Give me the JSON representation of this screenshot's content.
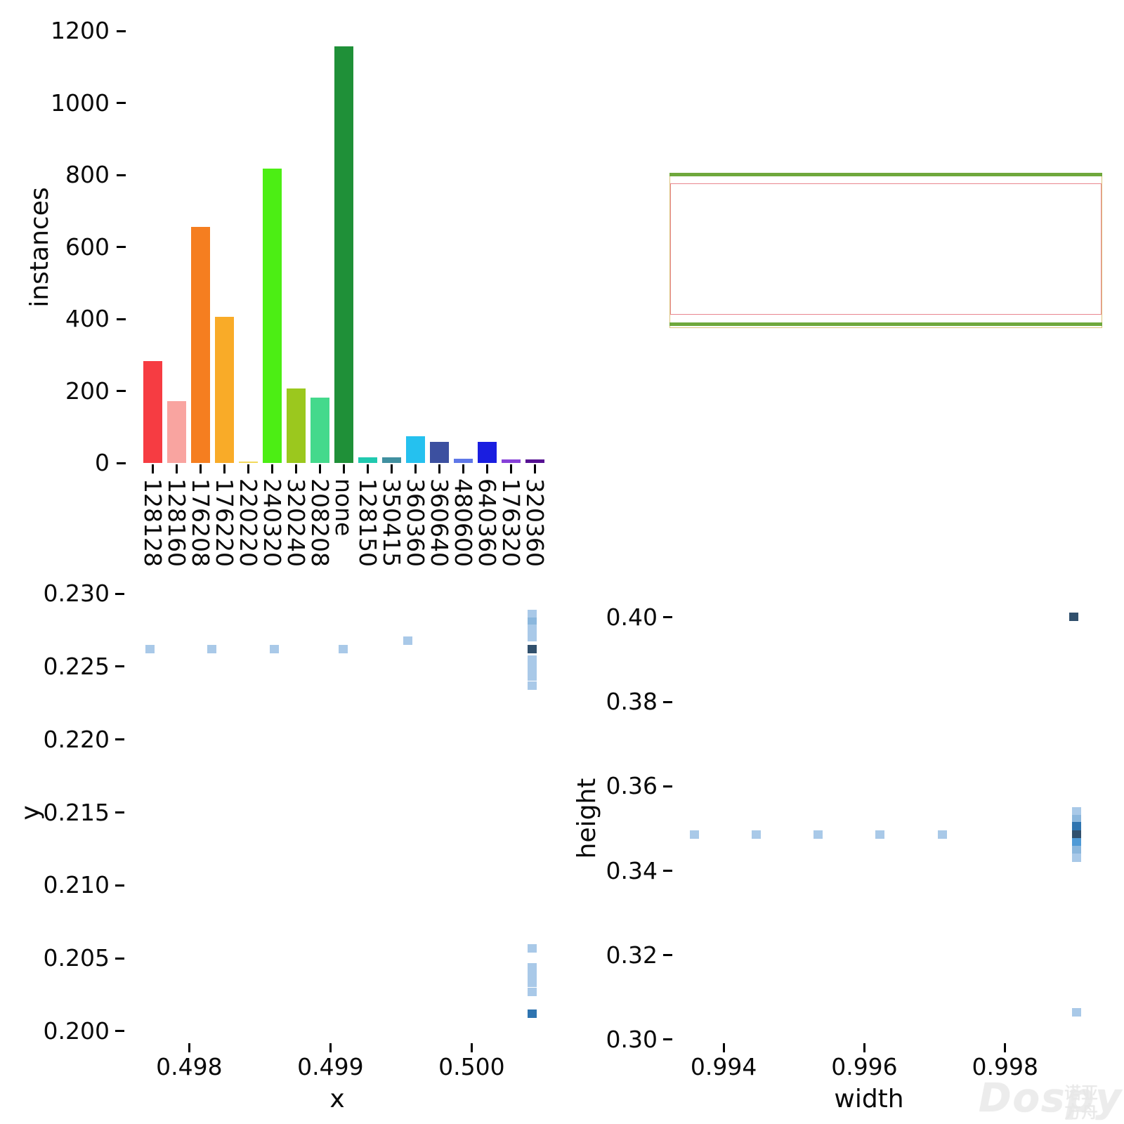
{
  "watermark": {
    "brand": "Dospy",
    "cjk_line1": "诺亚",
    "cjk_line2": "方舟"
  },
  "chart_data": [
    {
      "id": "instances-histogram",
      "type": "bar",
      "title": "",
      "xlabel": "",
      "ylabel": "instances",
      "ylim": [
        0,
        1208
      ],
      "ytick_values": [
        0,
        200,
        400,
        600,
        800,
        1000,
        1200
      ],
      "ytick_labels": [
        "0",
        "200",
        "400",
        "600",
        "800",
        "1000",
        "1200"
      ],
      "categories": [
        "128128",
        "128160",
        "176208",
        "176220",
        "220220",
        "240320",
        "320240",
        "208208",
        "none",
        "128150",
        "350415",
        "360360",
        "360640",
        "480600",
        "640360",
        "176320",
        "320360"
      ],
      "values": [
        283,
        171,
        655,
        406,
        3,
        817,
        207,
        181,
        1158,
        16,
        15,
        75,
        58,
        11,
        58,
        9,
        10
      ],
      "colors": [
        "#f63c42",
        "#f9a4a0",
        "#f57e20",
        "#f9ab28",
        "#f2d95c",
        "#4cee14",
        "#9bc81e",
        "#44d98c",
        "#1f9038",
        "#20c9af",
        "#4090a0",
        "#25c1ef",
        "#3c50a0",
        "#5f78e8",
        "#1a1ee0",
        "#8640d8",
        "#561192"
      ]
    },
    {
      "id": "bbox-overlay",
      "type": "boxes",
      "description": "overlaid bounding-box outlines",
      "rects": [
        {
          "name": "outer-yellow-box",
          "color": "#dcc37c",
          "thickness_px": 1
        },
        {
          "name": "green-box",
          "color": "#6fa83c",
          "thickness_px": 5
        },
        {
          "name": "red-box",
          "color": "#e9868f",
          "thickness_px": 1
        }
      ]
    },
    {
      "id": "xy-hist2d",
      "type": "heatmap",
      "xlabel": "x",
      "ylabel": "y",
      "xlim": [
        0.49758,
        0.50059
      ],
      "ylim": [
        0.19937,
        0.23092
      ],
      "xticks": [
        {
          "v": 0.498,
          "label": "0.498"
        },
        {
          "v": 0.499,
          "label": "0.499"
        },
        {
          "v": 0.5,
          "label": "0.500"
        }
      ],
      "yticks": [
        {
          "v": 0.2,
          "label": "0.200"
        },
        {
          "v": 0.205,
          "label": "0.205"
        },
        {
          "v": 0.21,
          "label": "0.210"
        },
        {
          "v": 0.215,
          "label": "0.215"
        },
        {
          "v": 0.22,
          "label": "0.220"
        },
        {
          "v": 0.225,
          "label": "0.225"
        },
        {
          "v": 0.23,
          "label": "0.230"
        }
      ],
      "palette": {
        "low": "#a9c9e8",
        "mlow": "#8bb7dd",
        "mid2": "#4f9ad6",
        "mid": "#2e74b0",
        "high": "#31506d"
      },
      "cells": [
        {
          "x": 0.49772,
          "y": 0.2262,
          "level": "low"
        },
        {
          "x": 0.49816,
          "y": 0.2262,
          "level": "low"
        },
        {
          "x": 0.4986,
          "y": 0.2262,
          "level": "low"
        },
        {
          "x": 0.49909,
          "y": 0.2262,
          "level": "low"
        },
        {
          "x": 0.49955,
          "y": 0.2268,
          "level": "low"
        },
        {
          "x": 0.50043,
          "y": 0.2286,
          "level": "low"
        },
        {
          "x": 0.50043,
          "y": 0.2281,
          "level": "mlow"
        },
        {
          "x": 0.50043,
          "y": 0.2276,
          "level": "low"
        },
        {
          "x": 0.50043,
          "y": 0.227,
          "level": "low"
        },
        {
          "x": 0.50043,
          "y": 0.2262,
          "level": "high"
        },
        {
          "x": 0.50043,
          "y": 0.2255,
          "level": "low"
        },
        {
          "x": 0.50043,
          "y": 0.2249,
          "level": "low"
        },
        {
          "x": 0.50043,
          "y": 0.2243,
          "level": "low"
        },
        {
          "x": 0.50043,
          "y": 0.2237,
          "level": "low"
        },
        {
          "x": 0.50043,
          "y": 0.2057,
          "level": "low"
        },
        {
          "x": 0.50043,
          "y": 0.2044,
          "level": "low"
        },
        {
          "x": 0.50043,
          "y": 0.2038,
          "level": "low"
        },
        {
          "x": 0.50043,
          "y": 0.2033,
          "level": "low"
        },
        {
          "x": 0.50043,
          "y": 0.2027,
          "level": "low"
        },
        {
          "x": 0.50043,
          "y": 0.2012,
          "level": "mid"
        }
      ]
    },
    {
      "id": "wh-hist2d",
      "type": "heatmap",
      "xlabel": "width",
      "ylabel": "height",
      "xlim": [
        0.9933,
        0.99914
      ],
      "ylim": [
        0.29983,
        0.40879
      ],
      "xticks": [
        {
          "v": 0.994,
          "label": "0.994"
        },
        {
          "v": 0.996,
          "label": "0.996"
        },
        {
          "v": 0.998,
          "label": "0.998"
        }
      ],
      "yticks": [
        {
          "v": 0.3,
          "label": "0.30"
        },
        {
          "v": 0.32,
          "label": "0.32"
        },
        {
          "v": 0.34,
          "label": "0.34"
        },
        {
          "v": 0.36,
          "label": "0.36"
        },
        {
          "v": 0.38,
          "label": "0.38"
        },
        {
          "v": 0.4,
          "label": "0.40"
        }
      ],
      "palette": {
        "low": "#a9c9e8",
        "mlow": "#8bb7dd",
        "mid2": "#4f9ad6",
        "mid": "#2e74b0",
        "high": "#31506d"
      },
      "cells": [
        {
          "x": 0.99898,
          "y": 0.4001,
          "level": "high"
        },
        {
          "x": 0.99358,
          "y": 0.3486,
          "level": "low"
        },
        {
          "x": 0.99446,
          "y": 0.3486,
          "level": "low"
        },
        {
          "x": 0.99534,
          "y": 0.3486,
          "level": "low"
        },
        {
          "x": 0.99622,
          "y": 0.3486,
          "level": "low"
        },
        {
          "x": 0.99711,
          "y": 0.3486,
          "level": "low"
        },
        {
          "x": 0.99902,
          "y": 0.3541,
          "level": "low"
        },
        {
          "x": 0.99902,
          "y": 0.3523,
          "level": "mlow"
        },
        {
          "x": 0.99902,
          "y": 0.3505,
          "level": "mid"
        },
        {
          "x": 0.99902,
          "y": 0.3486,
          "level": "high"
        },
        {
          "x": 0.99902,
          "y": 0.3467,
          "level": "mid2"
        },
        {
          "x": 0.99902,
          "y": 0.3449,
          "level": "mlow"
        },
        {
          "x": 0.99902,
          "y": 0.3431,
          "level": "low"
        },
        {
          "x": 0.99902,
          "y": 0.3065,
          "level": "low"
        }
      ]
    }
  ]
}
